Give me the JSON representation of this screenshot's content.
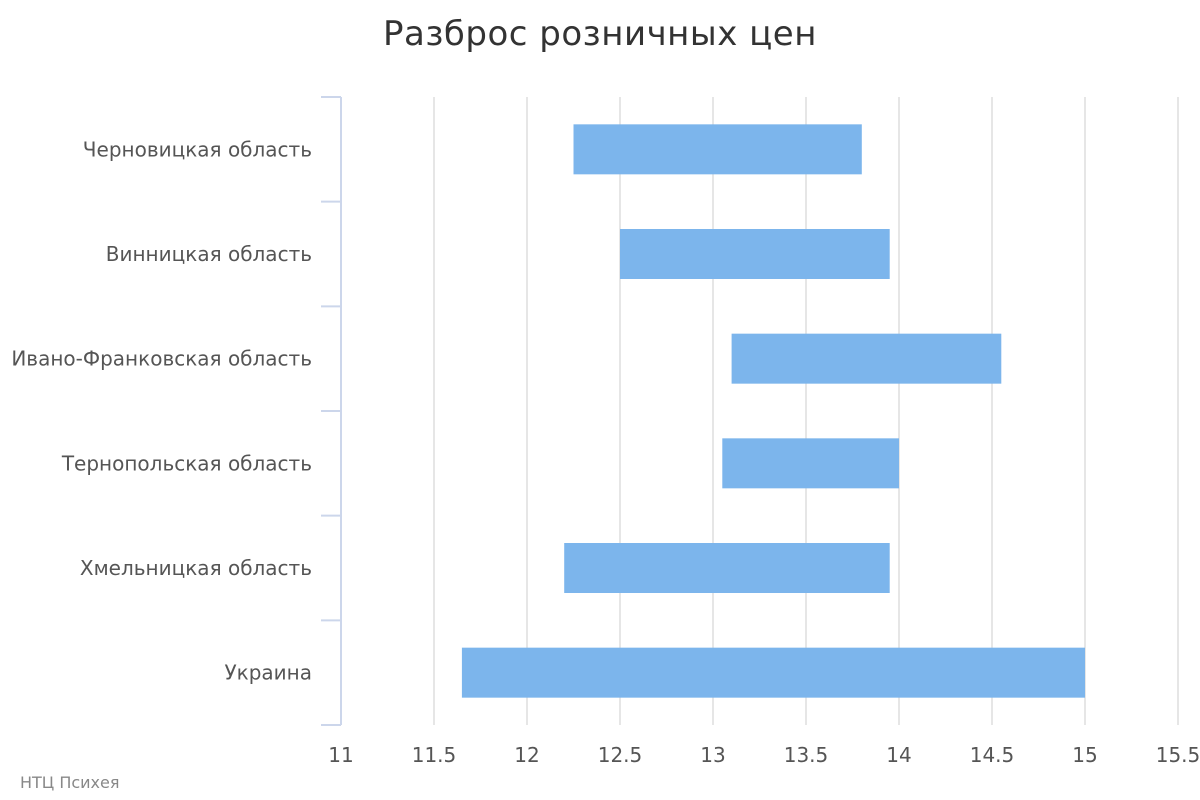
{
  "chart_data": {
    "type": "bar",
    "orientation": "horizontal",
    "title": "Разброс розничных цен",
    "categories": [
      "Черновицкая область",
      "Винницкая область",
      "Ивано-Франковская область",
      "Тернопольская область",
      "Хмельницкая область",
      "Украина"
    ],
    "series": [
      {
        "low": [
          12.25,
          12.5,
          13.1,
          13.05,
          12.2,
          11.65
        ],
        "high": [
          13.8,
          13.95,
          14.55,
          14.0,
          13.95,
          15.0
        ]
      }
    ],
    "xticks": [
      "11",
      "11.5",
      "12",
      "12.5",
      "13",
      "13.5",
      "14",
      "14.5",
      "15",
      "15.5"
    ],
    "xlim": [
      11,
      15.5
    ],
    "grid": true,
    "legend": "none",
    "bar_color": "#7cb5ec",
    "grid_color": "#e6e6e6",
    "axis_color": "#ccd6eb"
  },
  "credits": "НТЦ Психея"
}
